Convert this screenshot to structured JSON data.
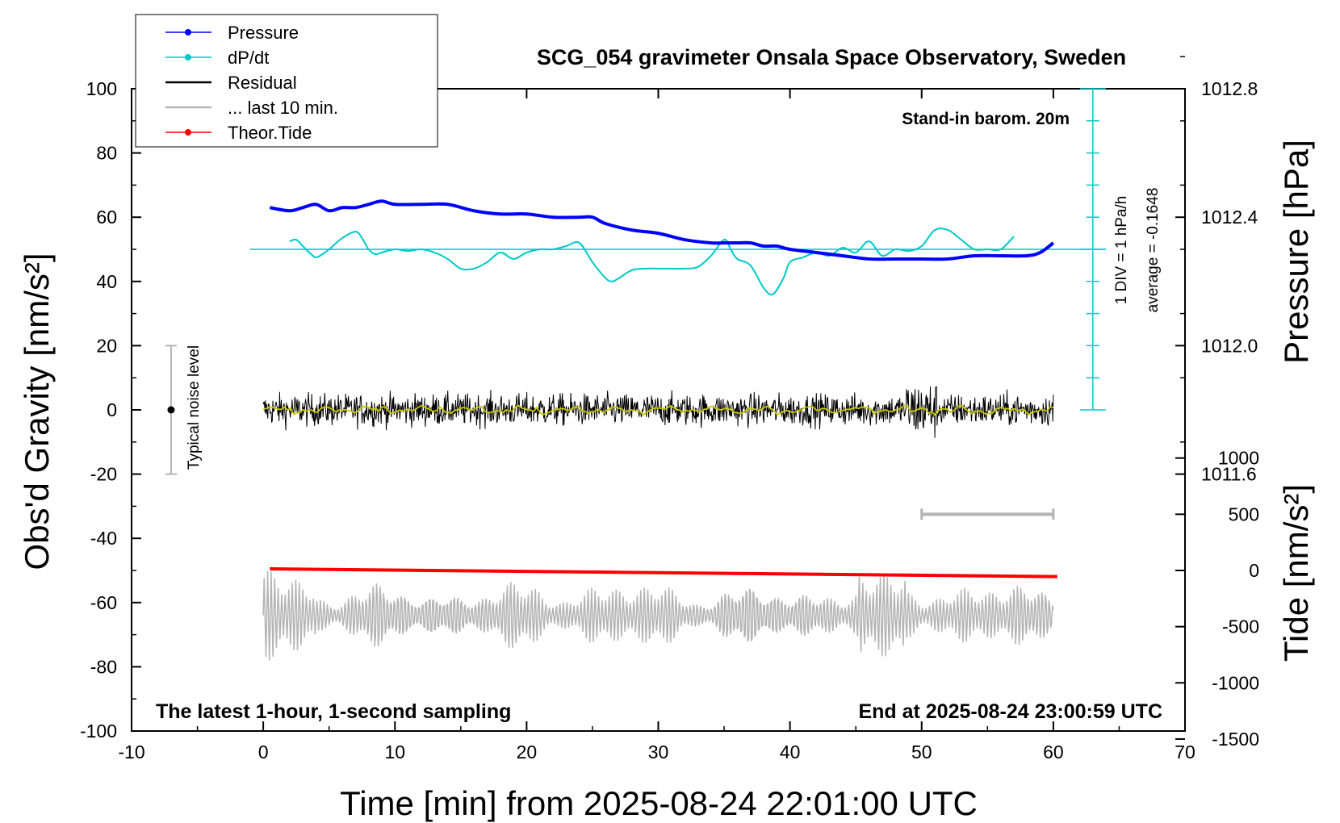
{
  "title": "SCG_054 gravimeter Onsala Space Observatory, Sweden",
  "annotations": {
    "standin": "Stand-in barom. 20m",
    "latest": "The latest 1-hour, 1-second sampling",
    "end": "End at 2025-08-24 23:00:59 UTC",
    "noise": "Typical noise level",
    "div": "1 DIV = 1 hPa/h",
    "average": "average = -0.1648"
  },
  "legend": [
    {
      "label": "Pressure",
      "color": "#0000ff",
      "marker": true
    },
    {
      "label": "dP/dt",
      "color": "#00c8c8",
      "marker": true
    },
    {
      "label": "Residual",
      "color": "#000000",
      "marker": false
    },
    {
      "label": "... last 10 min.",
      "color": "#b4b4b4",
      "marker": false
    },
    {
      "label": "Theor.Tide",
      "color": "#ff0000",
      "marker": true
    }
  ],
  "colors": {
    "pressure": "#0000ff",
    "dpdt": "#00c8c8",
    "residual": "#000000",
    "residual_smooth": "#c8c800",
    "last10": "#b4b4b4",
    "tide": "#ff0000",
    "tide_fast": "#b4b4b4"
  },
  "chart_data": {
    "type": "line",
    "xlabel": "Time [min] from 2025-08-24 22:01:00 UTC",
    "ylabel_left": "Obs'd Gravity [nm/s²]",
    "ylabel_right_top": "Pressure [hPa]",
    "ylabel_right_bottom": "Tide [nm/s²]",
    "xlim": [
      -10,
      70
    ],
    "ylim": [
      -100,
      100
    ],
    "pressure_lim": [
      1011.2,
      1013.2
    ],
    "tide_lim": [
      -1500,
      1500
    ],
    "x_ticks": [
      -10,
      0,
      10,
      20,
      30,
      40,
      50,
      60,
      70
    ],
    "x_tick_labels": [
      "-10",
      "0",
      "10",
      "20",
      "30",
      "40",
      "50",
      "60",
      "70"
    ],
    "y_ticks": [
      -100,
      -80,
      -60,
      -40,
      -20,
      0,
      20,
      40,
      60,
      80,
      100
    ],
    "y_tick_labels": [
      "-100",
      "-80",
      "-60",
      "-40",
      "-20",
      "0",
      "20",
      "40",
      "60",
      "80",
      "100"
    ],
    "pressure_ticks": [
      1011.6,
      1012.0,
      1012.4,
      1012.8
    ],
    "pressure_tick_labels": [
      "1011.6",
      "1012.0",
      "1012.4",
      "1012.8"
    ],
    "tide_ticks": [
      -1500,
      -1000,
      -500,
      0,
      500,
      1000
    ],
    "tide_tick_labels": [
      "-1500",
      "-1000",
      "-500",
      "0",
      "500",
      "1000"
    ],
    "dpdt_zero_y": 50,
    "dpdt_average": -0.1648,
    "pressure_series": {
      "name": "Pressure",
      "x": [
        0.5,
        2,
        3,
        4,
        5,
        6,
        7,
        8,
        9,
        10,
        12,
        14,
        16,
        18,
        20,
        22,
        24,
        25,
        26,
        28,
        30,
        32,
        34,
        35,
        36,
        37,
        38,
        39,
        40,
        42,
        44,
        46,
        48,
        49,
        50,
        52,
        54,
        56,
        58,
        59,
        60
      ],
      "values": [
        1012.43,
        1012.42,
        1012.43,
        1012.44,
        1012.42,
        1012.43,
        1012.43,
        1012.44,
        1012.45,
        1012.44,
        1012.44,
        1012.44,
        1012.42,
        1012.41,
        1012.41,
        1012.4,
        1012.4,
        1012.4,
        1012.38,
        1012.36,
        1012.35,
        1012.33,
        1012.32,
        1012.32,
        1012.32,
        1012.32,
        1012.31,
        1012.31,
        1012.3,
        1012.29,
        1012.28,
        1012.27,
        1012.27,
        1012.27,
        1012.27,
        1012.27,
        1012.28,
        1012.28,
        1012.28,
        1012.29,
        1012.32
      ]
    },
    "dpdt_series": {
      "name": "dP/dt",
      "x": [
        2,
        2.5,
        3,
        3.5,
        4,
        4.5,
        5,
        6,
        7,
        7.5,
        8,
        8.5,
        9,
        10,
        11,
        12,
        13,
        14,
        15,
        16,
        17,
        18,
        19,
        20,
        21,
        22,
        23,
        24,
        25,
        26,
        26.5,
        27,
        28,
        29,
        30,
        31,
        32,
        33,
        34,
        35,
        35.5,
        36,
        37,
        38,
        38.7,
        39.5,
        40,
        41,
        42,
        43,
        44,
        45,
        46,
        47,
        48,
        49,
        50,
        51,
        52,
        53,
        54,
        55,
        56,
        57
      ],
      "values": [
        52.5,
        53,
        51,
        49,
        47.5,
        48.5,
        50,
        53.5,
        55.5,
        53.5,
        50,
        48.5,
        49,
        50,
        49.5,
        50,
        49,
        47,
        44,
        44,
        46,
        49,
        47,
        49,
        50,
        50,
        51,
        52,
        46,
        41,
        40,
        41,
        43.5,
        44,
        44,
        44,
        44,
        44.5,
        48,
        53,
        50,
        47,
        45,
        38,
        36,
        41,
        46,
        47.5,
        49,
        48,
        50.5,
        49,
        52.5,
        48,
        50,
        49.5,
        51,
        56,
        56,
        53,
        50,
        50,
        50,
        54
      ]
    },
    "residual_series": {
      "name": "Residual",
      "x_range": [
        0,
        60
      ],
      "amplitude": 5
    },
    "tide_series": {
      "name": "Theor.Tide",
      "x": [
        0.5,
        60.3
      ],
      "values": [
        14,
        -55
      ]
    },
    "noise_bar": {
      "x": -7,
      "y_range": [
        -20,
        20
      ],
      "center": 0
    },
    "last10_marker": {
      "x_range": [
        50,
        60
      ],
      "tide_value": 500
    }
  }
}
